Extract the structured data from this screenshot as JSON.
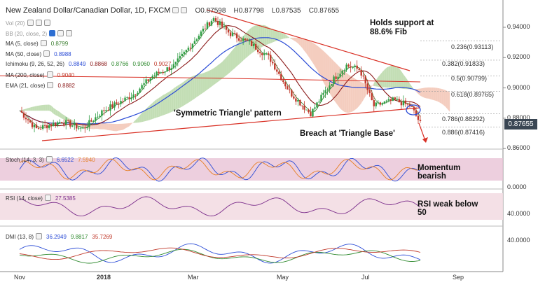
{
  "header": {
    "title": "New Zealand Dollar/Canadian Dollar, 1D, FXCM",
    "ohlc": [
      {
        "label": "O",
        "value": "0.87598"
      },
      {
        "label": "H",
        "value": "0.87798"
      },
      {
        "label": "L",
        "value": "0.87535"
      },
      {
        "label": "C",
        "value": "0.87655"
      }
    ]
  },
  "legend": [
    {
      "name": "vol",
      "label": "Vol (20)",
      "values": []
    },
    {
      "name": "bb",
      "label": "BB (20, close, 2)",
      "values": []
    },
    {
      "name": "ma5",
      "label": "MA (5, close)",
      "values": [
        "0.8799"
      ],
      "color": "#e36b62"
    },
    {
      "name": "ma50",
      "label": "MA (50, close)",
      "values": [
        "0.8988"
      ],
      "color": "#2b4cd6"
    },
    {
      "name": "ichimoku",
      "label": "Ichimoku (9, 26, 52, 26)",
      "values": [
        "0.8849",
        "0.8868",
        "0.8766",
        "0.9060",
        "0.9027"
      ],
      "colors": [
        "#2b4cd6",
        "#8b1a1a",
        "#2f8a2f",
        "#2f8a2f",
        "#c0392b"
      ]
    },
    {
      "name": "ma200",
      "label": "MA (200, close)",
      "values": [
        "0.9040"
      ],
      "color": "#c0392b"
    },
    {
      "name": "ema21",
      "label": "EMA (21, close)",
      "values": [
        "0.8882"
      ],
      "color": "#8b1a1a"
    }
  ],
  "annotations": {
    "support": "Holds support at\n88.6% Fib",
    "pattern": "'Symmetric Triangle' pattern",
    "breach": "Breach at 'Triangle Base'",
    "momentum": "Momentum\nbearish",
    "rsi_note": "RSI weak below\n50"
  },
  "last_price": "0.87655",
  "colors": {
    "up": "#2f9e44",
    "down": "#c0392b",
    "ma50": "#2b4cd6",
    "ema21": "#8b1a1a",
    "trend": "#d93025",
    "cloud_green": "#b9d8a8",
    "cloud_red": "#f2c4b4",
    "panel_band": "#e8c3d6"
  },
  "chart_data": [
    {
      "type": "candlestick",
      "title": "New Zealand Dollar/Canadian Dollar, 1D, FXCM",
      "x_ticks": [
        "Nov",
        "2018",
        "Mar",
        "May",
        "Jul",
        "Sep"
      ],
      "y_ticks": [
        "0.94000",
        "0.92000",
        "0.90000",
        "0.88000",
        "0.86000"
      ],
      "ylim": [
        0.856,
        0.952
      ],
      "fib_levels": [
        {
          "label": "0.236(0.93113)",
          "value": 0.93113
        },
        {
          "label": "0.382(0.91833)",
          "value": 0.91833
        },
        {
          "label": "0.5(0.90799)",
          "value": 0.90799
        },
        {
          "label": "0.618(0.89765)",
          "value": 0.89765
        },
        {
          "label": "0.786(0.88292)",
          "value": 0.88292
        },
        {
          "label": "0.886(0.87416)",
          "value": 0.87416
        }
      ],
      "close_path": [
        {
          "date": "2017-10-20",
          "close": 0.885
        },
        {
          "date": "2017-11-01",
          "close": 0.873
        },
        {
          "date": "2017-11-20",
          "close": 0.878
        },
        {
          "date": "2017-12-05",
          "close": 0.873
        },
        {
          "date": "2017-12-20",
          "close": 0.885
        },
        {
          "date": "2018-01-10",
          "close": 0.895
        },
        {
          "date": "2018-01-25",
          "close": 0.908
        },
        {
          "date": "2018-02-10",
          "close": 0.915
        },
        {
          "date": "2018-02-25",
          "close": 0.932
        },
        {
          "date": "2018-03-10",
          "close": 0.946
        },
        {
          "date": "2018-03-22",
          "close": 0.936
        },
        {
          "date": "2018-04-05",
          "close": 0.93
        },
        {
          "date": "2018-04-20",
          "close": 0.92
        },
        {
          "date": "2018-05-05",
          "close": 0.897
        },
        {
          "date": "2018-05-20",
          "close": 0.883
        },
        {
          "date": "2018-06-05",
          "close": 0.905
        },
        {
          "date": "2018-06-15",
          "close": 0.915
        },
        {
          "date": "2018-06-25",
          "close": 0.912
        },
        {
          "date": "2018-07-05",
          "close": 0.888
        },
        {
          "date": "2018-07-20",
          "close": 0.892
        },
        {
          "date": "2018-08-01",
          "close": 0.888
        },
        {
          "date": "2018-08-08",
          "close": 0.8766
        }
      ]
    },
    {
      "type": "line",
      "title": "Stoch (14, 3, 3)",
      "values": [
        "6.6522",
        "7.5940"
      ],
      "y_ticks": [
        "0.0000"
      ]
    },
    {
      "type": "line",
      "title": "RSI (14, close)",
      "values": [
        "27.5385"
      ],
      "y_ticks": [
        "40.0000"
      ]
    },
    {
      "type": "line",
      "title": "DMI (13, 8)",
      "values": [
        "36.2949",
        "9.8817",
        "35.7269"
      ],
      "y_ticks": [
        "40.0000"
      ]
    }
  ]
}
